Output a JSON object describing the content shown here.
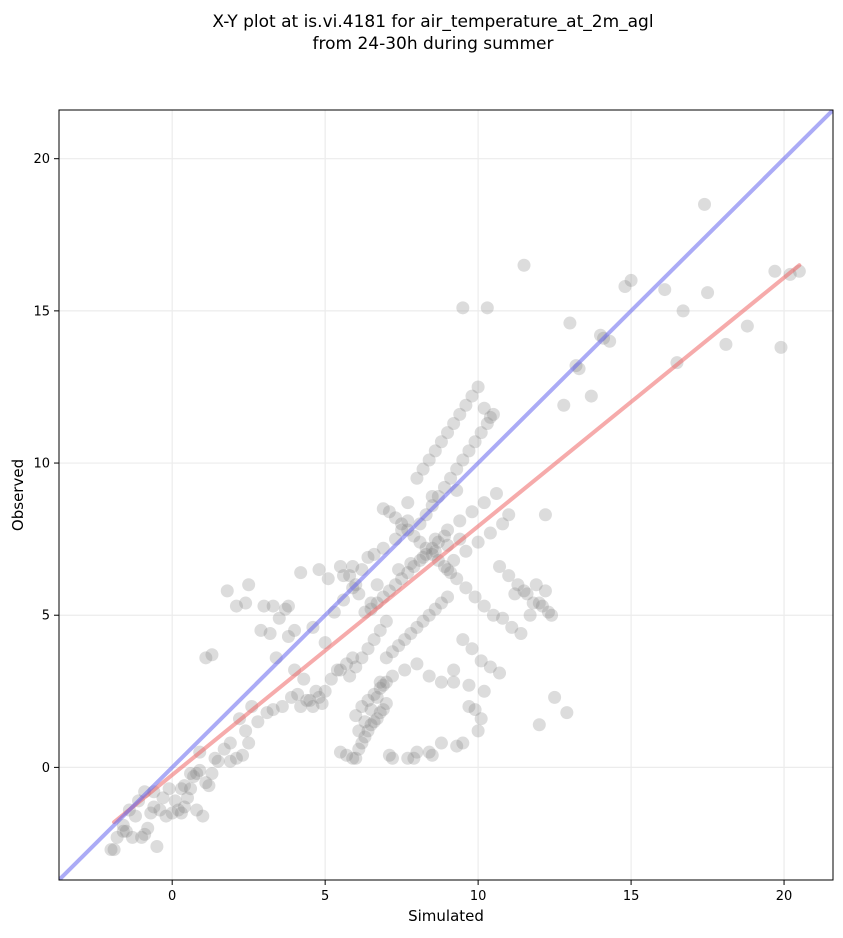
{
  "chart_data": {
    "type": "scatter",
    "title_line1": "X-Y plot at is.vi.4181 for air_temperature_at_2m_agl",
    "title_line2": "from 24-30h during summer",
    "xlabel": "Simulated",
    "ylabel": "Observed",
    "xlim": [
      -3.7,
      21.6
    ],
    "ylim": [
      -3.7,
      21.6
    ],
    "xticks": [
      0,
      5,
      10,
      15,
      20
    ],
    "yticks": [
      0,
      5,
      10,
      15,
      20
    ],
    "grid": true,
    "colors": {
      "points": "#808080",
      "identity_line": "#6666ee",
      "fit_line": "#ee6666"
    },
    "identity_line": {
      "x": [
        -3.7,
        21.6
      ],
      "y": [
        -3.7,
        21.6
      ]
    },
    "fit_line": {
      "x": [
        -1.9,
        20.5
      ],
      "y": [
        -1.8,
        16.5
      ]
    },
    "points": {
      "x": [
        -2.0,
        -1.9,
        -1.8,
        -1.6,
        -1.5,
        -1.3,
        -1.2,
        -1.0,
        -0.9,
        -0.8,
        -0.7,
        -0.6,
        -0.5,
        -0.4,
        -0.3,
        -0.2,
        0.0,
        0.1,
        0.2,
        0.3,
        0.4,
        0.5,
        0.6,
        0.7,
        0.8,
        0.9,
        1.0,
        1.1,
        1.2,
        1.3,
        1.5,
        1.7,
        1.9,
        2.1,
        2.3,
        2.4,
        2.5,
        -1.4,
        -1.1,
        -0.6,
        -0.1,
        0.3,
        0.6,
        0.9,
        1.4,
        1.9,
        2.2,
        0.4,
        0.8,
        -1.6,
        -0.9,
        1.1,
        1.3,
        1.8,
        2.1,
        2.4,
        2.5,
        2.9,
        3.0,
        3.2,
        3.4,
        3.5,
        3.7,
        3.8,
        4.0,
        4.2,
        4.3,
        4.5,
        4.7,
        4.9,
        2.6,
        2.8,
        3.1,
        3.3,
        3.6,
        3.9,
        4.1,
        4.4,
        4.6,
        4.8,
        5.0,
        5.2,
        5.4,
        5.5,
        5.7,
        5.9,
        3.8,
        4.6,
        5.0,
        5.3,
        5.6,
        5.9,
        4.2,
        4.8,
        5.1,
        5.5,
        5.8,
        6.0,
        3.3,
        4.0,
        5.5,
        5.7,
        5.9,
        6.0,
        6.1,
        6.2,
        6.3,
        6.4,
        6.5,
        6.6,
        6.7,
        6.8,
        6.9,
        7.0,
        7.1,
        7.2,
        6.0,
        6.2,
        6.4,
        6.6,
        6.8,
        7.0,
        6.1,
        6.3,
        6.5,
        6.7,
        6.9,
        5.8,
        6.0,
        6.2,
        6.4,
        6.6,
        6.8,
        7.0,
        6.3,
        6.5,
        6.1,
        6.7,
        5.6,
        5.9,
        6.4,
        6.9,
        7.3,
        7.5,
        7.7,
        6.6,
        6.2,
        6.5,
        6.7,
        6.9,
        7.1,
        7.3,
        7.5,
        7.7,
        7.9,
        8.1,
        8.3,
        8.5,
        8.7,
        8.9,
        7.0,
        7.2,
        7.4,
        7.6,
        7.8,
        8.0,
        8.2,
        8.4,
        8.6,
        8.8,
        9.0,
        7.1,
        7.3,
        7.5,
        7.7,
        7.9,
        8.1,
        8.3,
        8.5,
        8.7,
        8.9,
        9.1,
        6.8,
        7.2,
        7.6,
        8.0,
        8.4,
        8.8,
        9.2,
        7.4,
        7.8,
        8.2,
        8.6,
        9.0,
        9.4,
        6.9,
        7.7,
        8.5,
        9.3,
        8.0,
        8.2,
        8.4,
        8.6,
        8.8,
        9.0,
        9.2,
        9.4,
        9.6,
        9.8,
        10.0,
        10.2,
        10.4,
        8.1,
        8.3,
        8.5,
        8.7,
        8.9,
        9.1,
        9.3,
        9.5,
        9.7,
        9.9,
        10.1,
        10.3,
        10.5,
        8.6,
        9.0,
        9.4,
        9.8,
        10.2,
        10.6,
        9.2,
        9.6,
        10.0,
        10.4,
        10.8,
        11.0,
        9.5,
        10.3,
        9.0,
        9.3,
        9.6,
        9.9,
        10.2,
        10.5,
        10.8,
        11.1,
        11.4,
        11.7,
        12.0,
        12.3,
        11.2,
        11.5,
        11.8,
        12.1,
        12.4,
        10.7,
        11.0,
        11.3,
        11.6,
        11.9,
        12.2,
        9.5,
        9.8,
        10.1,
        10.4,
        10.7,
        9.2,
        9.7,
        10.2,
        7.7,
        8.0,
        8.5,
        9.3,
        9.5,
        9.7,
        10.0,
        7.9,
        8.4,
        8.8,
        9.9,
        10.1,
        12.5,
        12.8,
        13.0,
        13.3,
        13.7,
        14.0,
        14.1,
        14.3,
        14.8,
        15.0,
        16.1,
        16.5,
        16.7,
        17.4,
        17.5,
        18.1,
        18.8,
        19.7,
        19.9,
        20.2,
        20.5,
        13.2,
        12.2,
        12.0,
        12.9,
        11.5
      ],
      "y": [
        -2.7,
        -2.7,
        -2.3,
        -1.9,
        -2.1,
        -2.3,
        -1.6,
        -2.3,
        -2.2,
        -2.0,
        -1.5,
        -1.3,
        -2.6,
        -1.4,
        -1.0,
        -1.6,
        -1.5,
        -1.1,
        -1.4,
        -1.5,
        -1.3,
        -1.0,
        -0.7,
        -0.3,
        -1.4,
        -0.1,
        -1.6,
        -0.5,
        -0.6,
        -0.2,
        0.2,
        0.6,
        0.2,
        0.3,
        0.4,
        1.2,
        0.8,
        -1.4,
        -1.1,
        -0.8,
        -0.7,
        -0.7,
        -0.2,
        0.5,
        0.3,
        0.8,
        1.6,
        -0.6,
        -0.2,
        -2.1,
        -0.8,
        3.6,
        3.7,
        5.8,
        5.3,
        5.4,
        6.0,
        4.5,
        5.3,
        4.4,
        3.6,
        4.9,
        5.2,
        4.3,
        3.2,
        2.0,
        2.9,
        2.2,
        2.5,
        2.1,
        2.0,
        1.5,
        1.8,
        1.9,
        2.0,
        2.3,
        2.4,
        2.2,
        2.0,
        2.3,
        2.5,
        2.9,
        3.2,
        3.2,
        3.4,
        3.6,
        5.3,
        4.6,
        4.1,
        5.1,
        5.5,
        5.9,
        6.4,
        6.5,
        6.2,
        6.6,
        6.3,
        6.0,
        5.3,
        4.5,
        0.5,
        0.4,
        0.3,
        0.3,
        0.6,
        0.8,
        1.0,
        1.2,
        1.4,
        1.5,
        1.6,
        1.8,
        1.9,
        2.1,
        0.4,
        0.3,
        1.7,
        2.0,
        2.2,
        2.4,
        2.6,
        2.8,
        1.2,
        1.5,
        1.9,
        2.3,
        2.7,
        3.0,
        3.3,
        3.6,
        3.9,
        4.2,
        4.5,
        4.8,
        5.1,
        5.4,
        5.7,
        6.0,
        6.3,
        6.6,
        6.9,
        7.2,
        7.5,
        7.8,
        8.1,
        7.0,
        6.5,
        5.2,
        5.4,
        5.6,
        5.8,
        6.0,
        6.2,
        6.4,
        6.6,
        6.8,
        7.0,
        7.2,
        7.4,
        7.6,
        3.6,
        3.8,
        4.0,
        4.2,
        4.4,
        4.6,
        4.8,
        5.0,
        5.2,
        5.4,
        5.6,
        8.4,
        8.2,
        8.0,
        7.8,
        7.6,
        7.4,
        7.2,
        7.0,
        6.8,
        6.6,
        6.4,
        2.8,
        3.0,
        3.2,
        3.4,
        3.0,
        2.8,
        3.2,
        6.5,
        6.7,
        6.9,
        7.1,
        7.3,
        7.5,
        8.5,
        8.7,
        8.9,
        9.1,
        9.5,
        9.8,
        10.1,
        10.4,
        10.7,
        11.0,
        11.3,
        11.6,
        11.9,
        12.2,
        12.5,
        11.8,
        11.5,
        8.0,
        8.3,
        8.6,
        8.9,
        9.2,
        9.5,
        9.8,
        10.1,
        10.4,
        10.7,
        11.0,
        11.3,
        11.6,
        7.5,
        7.8,
        8.1,
        8.4,
        8.7,
        9.0,
        6.8,
        7.1,
        7.4,
        7.7,
        8.0,
        8.3,
        15.1,
        15.1,
        6.5,
        6.2,
        5.9,
        5.6,
        5.3,
        5.0,
        4.9,
        4.6,
        4.4,
        5.0,
        5.4,
        5.1,
        5.7,
        5.8,
        5.4,
        5.3,
        5.0,
        6.6,
        6.3,
        6.0,
        5.7,
        6.0,
        5.8,
        4.2,
        3.9,
        3.5,
        3.3,
        3.1,
        2.8,
        2.7,
        2.5,
        0.3,
        0.5,
        0.4,
        0.7,
        0.8,
        2.0,
        1.2,
        0.3,
        0.5,
        0.8,
        1.9,
        1.6,
        2.3,
        11.9,
        14.6,
        13.1,
        12.2,
        14.2,
        14.1,
        14.0,
        15.8,
        16.0,
        15.7,
        13.3,
        15.0,
        18.5,
        15.6,
        13.9,
        14.5,
        16.3,
        13.8,
        16.2,
        16.3,
        13.2,
        8.3,
        1.4,
        1.8,
        16.5
      ]
    }
  }
}
